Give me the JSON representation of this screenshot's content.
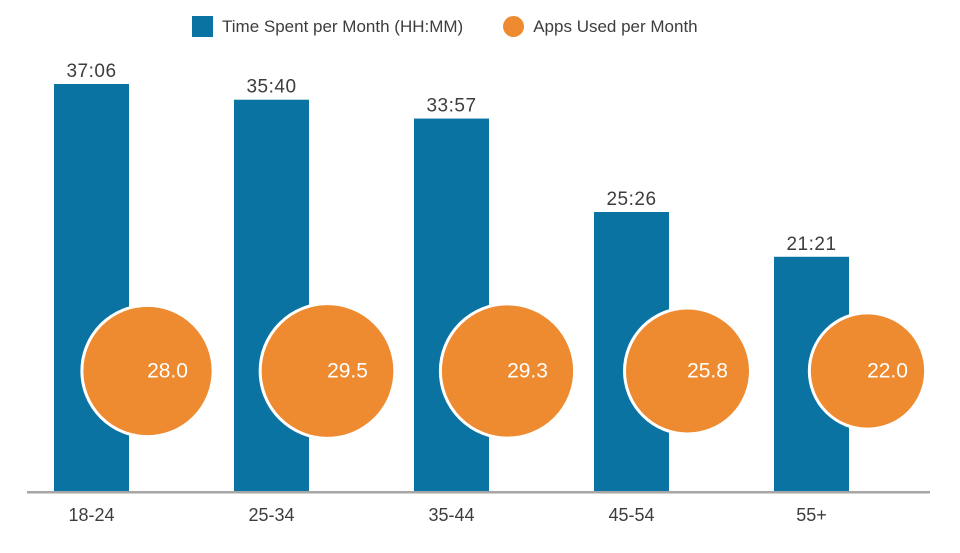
{
  "page": {
    "background": "#ffffff"
  },
  "legend": [
    {
      "label": "Time Spent per Month (HH:MM)",
      "marker": "square",
      "color": "#0b73a2"
    },
    {
      "label": "Apps Used per Month",
      "marker": "circle",
      "color": "#ee8a30"
    }
  ],
  "chart_data": {
    "type": "bar",
    "categories": [
      "18-24",
      "25-34",
      "35-44",
      "45-54",
      "55+"
    ],
    "series": [
      {
        "name": "Time Spent per Month (HH:MM)",
        "type": "bar",
        "color": "#0b73a2",
        "labels": [
          "37:06",
          "35:40",
          "33:57",
          "25:26",
          "21:21"
        ],
        "values_minutes": [
          2226,
          2140,
          2037,
          1526,
          1281
        ]
      },
      {
        "name": "Apps Used per Month",
        "type": "bubble",
        "color": "#ee8a30",
        "labels": [
          "28.0",
          "29.5",
          "29.3",
          "25.8",
          "22.0"
        ],
        "values": [
          28.0,
          29.5,
          29.3,
          25.8,
          22.0
        ]
      }
    ],
    "title": "",
    "xlabel": "",
    "ylabel": "",
    "layout": {
      "legend_position": "top",
      "y_axis_visible": false,
      "gridlines": false,
      "axis_line_color": "#a6a6a6",
      "label_color": "#3d3d3d",
      "bubble_label_color": "#ffffff",
      "bubble_stroke_color": "#ffffff"
    }
  }
}
